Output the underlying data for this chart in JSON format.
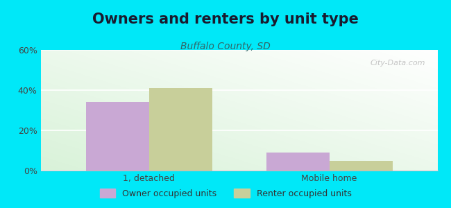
{
  "title": "Owners and renters by unit type",
  "subtitle": "Buffalo County, SD",
  "categories": [
    "1, detached",
    "Mobile home"
  ],
  "owner_values": [
    34.0,
    9.0
  ],
  "renter_values": [
    41.0,
    5.0
  ],
  "owner_color": "#c9a8d4",
  "renter_color": "#c8cf9a",
  "ylim": [
    0,
    60
  ],
  "yticks": [
    0,
    20,
    40,
    60
  ],
  "ytick_labels": [
    "0%",
    "20%",
    "40%",
    "60%"
  ],
  "background_outer": "#00e8f8",
  "bar_width": 0.35,
  "legend_owner": "Owner occupied units",
  "legend_renter": "Renter occupied units",
  "title_fontsize": 15,
  "subtitle_fontsize": 10,
  "axis_fontsize": 9,
  "legend_fontsize": 9,
  "watermark": "City-Data.com"
}
